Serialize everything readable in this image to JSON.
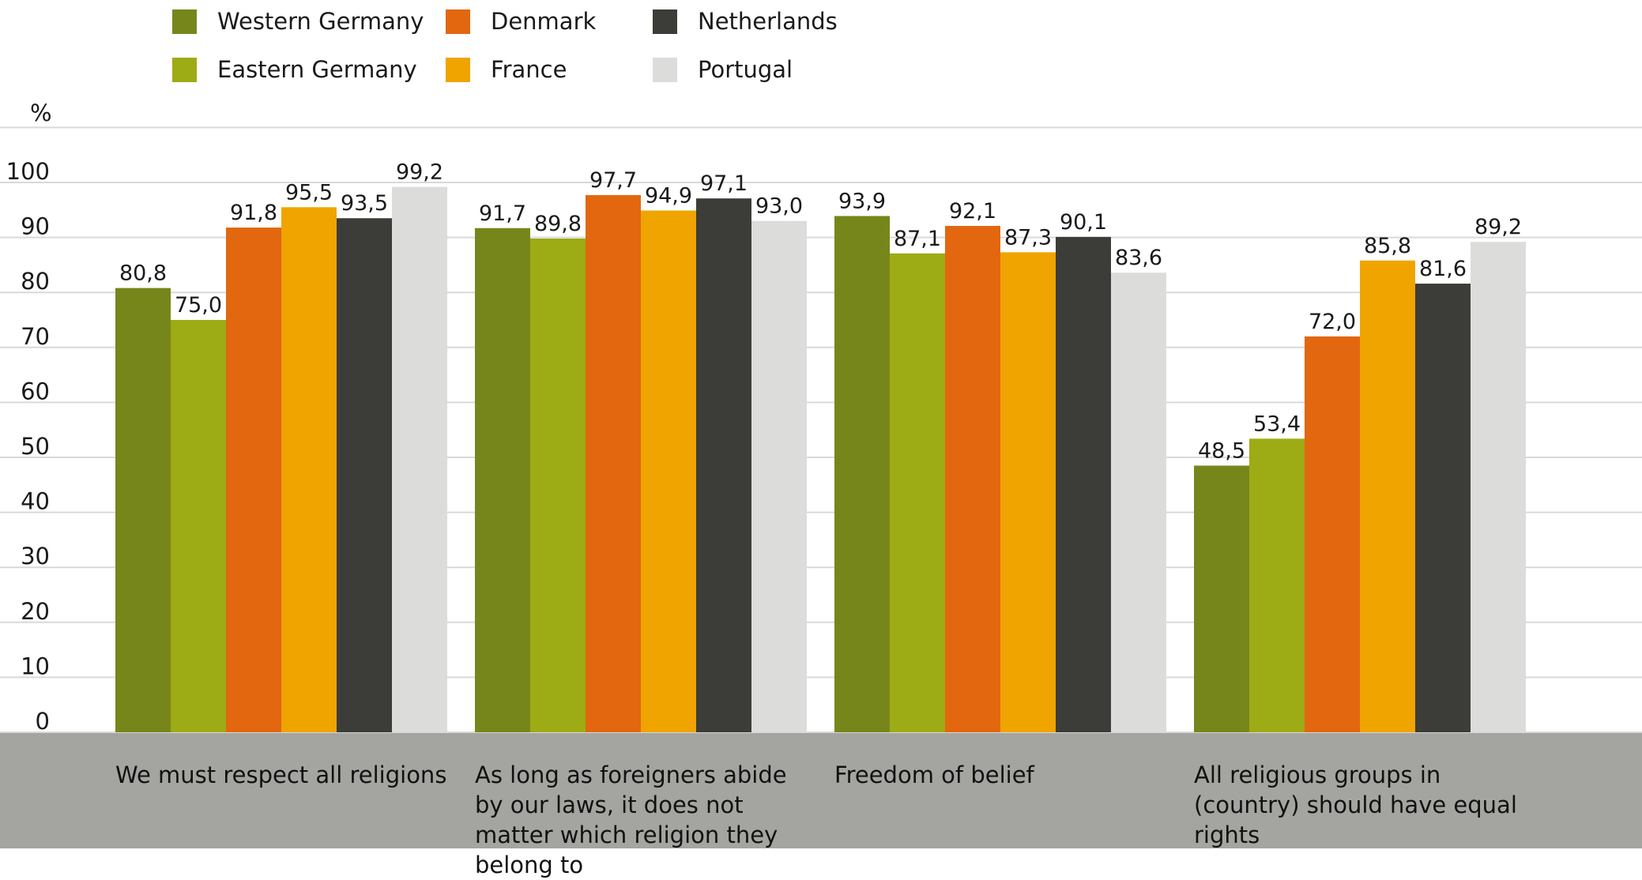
{
  "chart_data": {
    "type": "bar",
    "ylabel": "%",
    "ylim": [
      0,
      100
    ],
    "yticks": [
      0,
      10,
      20,
      30,
      40,
      50,
      60,
      70,
      80,
      90,
      100
    ],
    "grid": true,
    "legend_position": "top-left",
    "categories": [
      "We must respect all religions",
      "As long as foreigners abide by our laws, it does not matter which religion they belong to",
      "Freedom of belief",
      "All religious groups in (country) should have equal rights"
    ],
    "series": [
      {
        "name": "Western Germany",
        "color": "#77861a",
        "values": [
          80.8,
          91.7,
          93.9,
          48.5
        ],
        "labels": [
          "80,8",
          "91,7",
          "93,9",
          "48,5"
        ]
      },
      {
        "name": "Eastern Germany",
        "color": "#9dab14",
        "values": [
          75.0,
          89.8,
          87.1,
          53.4
        ],
        "labels": [
          "75,0",
          "89,8",
          "87,1",
          "53,4"
        ]
      },
      {
        "name": "Denmark",
        "color": "#e2670f",
        "values": [
          91.8,
          97.7,
          92.1,
          72.0
        ],
        "labels": [
          "91,8",
          "97,7",
          "92,1",
          "72,0"
        ]
      },
      {
        "name": "France",
        "color": "#f0a400",
        "values": [
          95.5,
          94.9,
          87.3,
          85.8
        ],
        "labels": [
          "95,5",
          "94,9",
          "87,3",
          "85,8"
        ]
      },
      {
        "name": "Netherlands",
        "color": "#3c3c38",
        "values": [
          93.5,
          97.1,
          90.1,
          81.6
        ],
        "labels": [
          "93,5",
          "97,1",
          "90,1",
          "81,6"
        ]
      },
      {
        "name": "Portugal",
        "color": "#dcdcda",
        "values": [
          99.2,
          93.0,
          83.6,
          89.2
        ],
        "labels": [
          "99,2",
          "93,0",
          "83,6",
          "89,2"
        ]
      }
    ],
    "colors": {
      "axis_band": "#a4a5a0",
      "grid": "#d9d9d9"
    }
  }
}
